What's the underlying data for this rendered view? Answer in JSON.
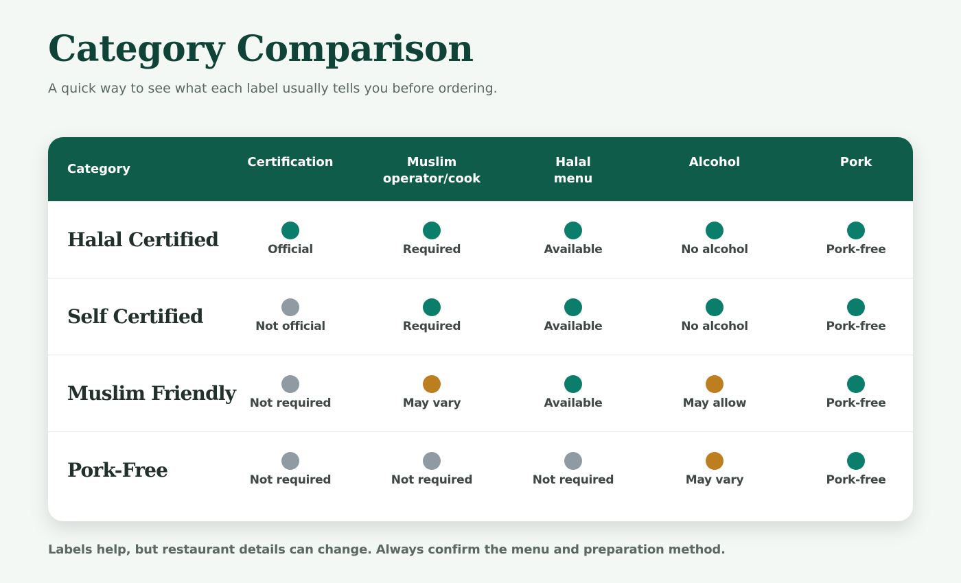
{
  "header": {
    "title": "Category Comparison",
    "subtitle": "A quick way to see what each label usually tells you before ordering."
  },
  "colors": {
    "header_bg": "#105c4b",
    "title": "#0f4337",
    "positive": "#0b7d6b",
    "neutral": "#8f9aa3",
    "caution": "#bd7e1f"
  },
  "table": {
    "first_header": "Category",
    "columns": [
      "Certification",
      "Muslim\noperator/cook",
      "Halal\nmenu",
      "Alcohol",
      "Pork"
    ],
    "rows": [
      {
        "label": "Halal Certified",
        "cells": [
          {
            "status": "positive",
            "text": "Official"
          },
          {
            "status": "positive",
            "text": "Required"
          },
          {
            "status": "positive",
            "text": "Available"
          },
          {
            "status": "positive",
            "text": "No alcohol"
          },
          {
            "status": "positive",
            "text": "Pork-free"
          }
        ]
      },
      {
        "label": "Self Certified",
        "cells": [
          {
            "status": "neutral",
            "text": "Not official"
          },
          {
            "status": "positive",
            "text": "Required"
          },
          {
            "status": "positive",
            "text": "Available"
          },
          {
            "status": "positive",
            "text": "No alcohol"
          },
          {
            "status": "positive",
            "text": "Pork-free"
          }
        ]
      },
      {
        "label": "Muslim Friendly",
        "cells": [
          {
            "status": "neutral",
            "text": "Not required"
          },
          {
            "status": "caution",
            "text": "May vary"
          },
          {
            "status": "positive",
            "text": "Available"
          },
          {
            "status": "caution",
            "text": "May allow"
          },
          {
            "status": "positive",
            "text": "Pork-free"
          }
        ]
      },
      {
        "label": "Pork-Free",
        "cells": [
          {
            "status": "neutral",
            "text": "Not required"
          },
          {
            "status": "neutral",
            "text": "Not required"
          },
          {
            "status": "neutral",
            "text": "Not required"
          },
          {
            "status": "caution",
            "text": "May vary"
          },
          {
            "status": "positive",
            "text": "Pork-free"
          }
        ]
      }
    ]
  },
  "footer": {
    "note": "Labels help, but restaurant details can change. Always confirm the menu and preparation method."
  }
}
